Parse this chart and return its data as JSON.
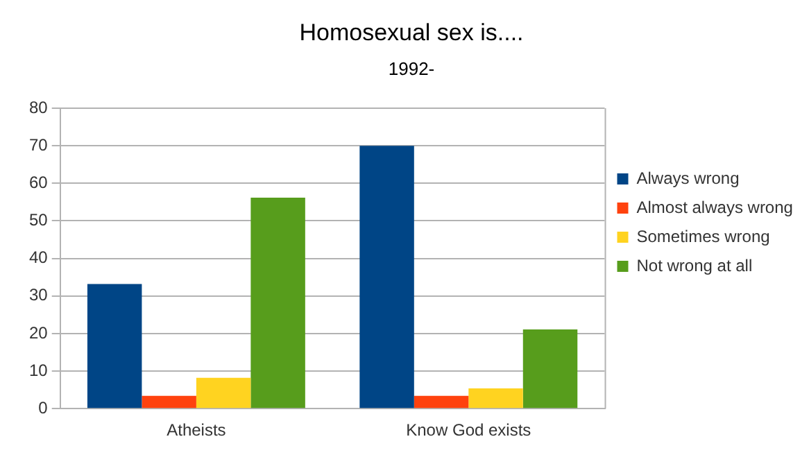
{
  "chart_data": {
    "type": "bar",
    "title": "Homosexual sex is....",
    "subtitle": "1992-",
    "categories": [
      "Atheists",
      "Know God exists"
    ],
    "series": [
      {
        "name": "Always wrong",
        "color": "#004586",
        "values": [
          33.2,
          70
        ]
      },
      {
        "name": "Almost always wrong",
        "color": "#ff420e",
        "values": [
          3.4,
          3.4
        ]
      },
      {
        "name": "Sometimes wrong",
        "color": "#ffd320",
        "values": [
          8.2,
          5.4
        ]
      },
      {
        "name": "Not wrong at all",
        "color": "#579d1c",
        "values": [
          56.2,
          21.1
        ]
      }
    ],
    "ylim": [
      0,
      80
    ],
    "yticks": [
      0,
      10,
      20,
      30,
      40,
      50,
      60,
      70,
      80
    ],
    "grid": "y",
    "legend": "right"
  }
}
